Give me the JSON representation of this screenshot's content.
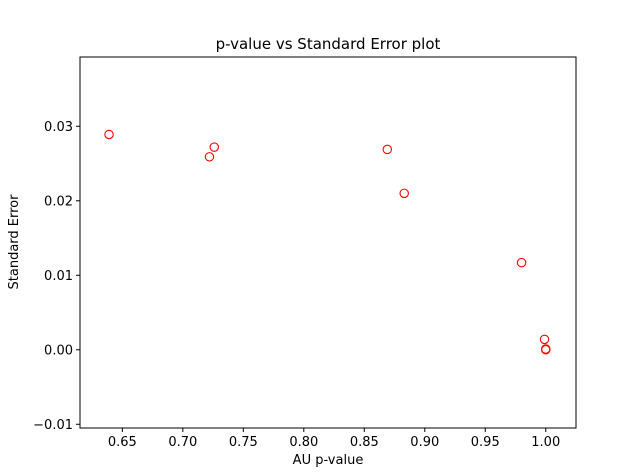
{
  "chart_data": {
    "type": "scatter",
    "title": "p-value vs Standard Error plot",
    "xlabel": "AU p-value",
    "ylabel": "Standard Error",
    "xlim": [
      0.615,
      1.025
    ],
    "ylim": [
      -0.0105,
      0.0393
    ],
    "xticks": [
      0.65,
      0.7,
      0.75,
      0.8,
      0.85,
      0.9,
      0.95,
      1.0
    ],
    "xtick_labels": [
      "0.65",
      "0.70",
      "0.75",
      "0.80",
      "0.85",
      "0.90",
      "0.95",
      "1.00"
    ],
    "yticks": [
      -0.01,
      0.0,
      0.01,
      0.02,
      0.03
    ],
    "ytick_labels": [
      "−0.01",
      "0.00",
      "0.01",
      "0.02",
      "0.03"
    ],
    "grid": false,
    "marker": "open-circle",
    "marker_color": "#ff0000",
    "points": [
      {
        "x": 0.639,
        "y": 0.0289
      },
      {
        "x": 0.722,
        "y": 0.0259
      },
      {
        "x": 0.726,
        "y": 0.0272
      },
      {
        "x": 0.869,
        "y": 0.0269
      },
      {
        "x": 0.883,
        "y": 0.021
      },
      {
        "x": 0.98,
        "y": 0.0117
      },
      {
        "x": 0.999,
        "y": 0.0014
      },
      {
        "x": 1.0,
        "y": 0.0001
      },
      {
        "x": 1.0,
        "y": 0.0
      }
    ]
  }
}
